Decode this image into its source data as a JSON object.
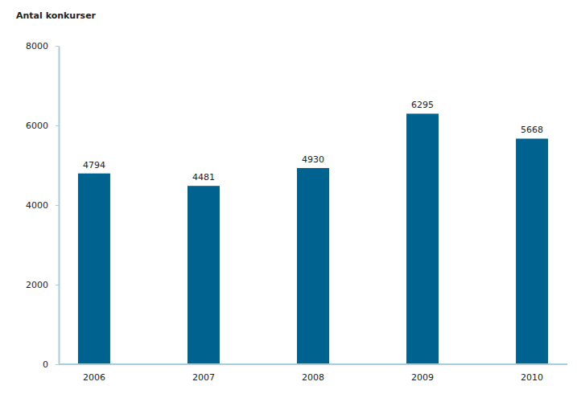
{
  "chart_data": {
    "type": "bar",
    "title": "Antal konkurser",
    "categories": [
      "2006",
      "2007",
      "2008",
      "2009",
      "2010"
    ],
    "values": [
      4794,
      4481,
      4930,
      6295,
      5668
    ],
    "color": "#00628f",
    "ylim": [
      0,
      8000
    ],
    "yticks": [
      0,
      2000,
      4000,
      6000,
      8000
    ],
    "grid": false,
    "data_labels": true
  }
}
